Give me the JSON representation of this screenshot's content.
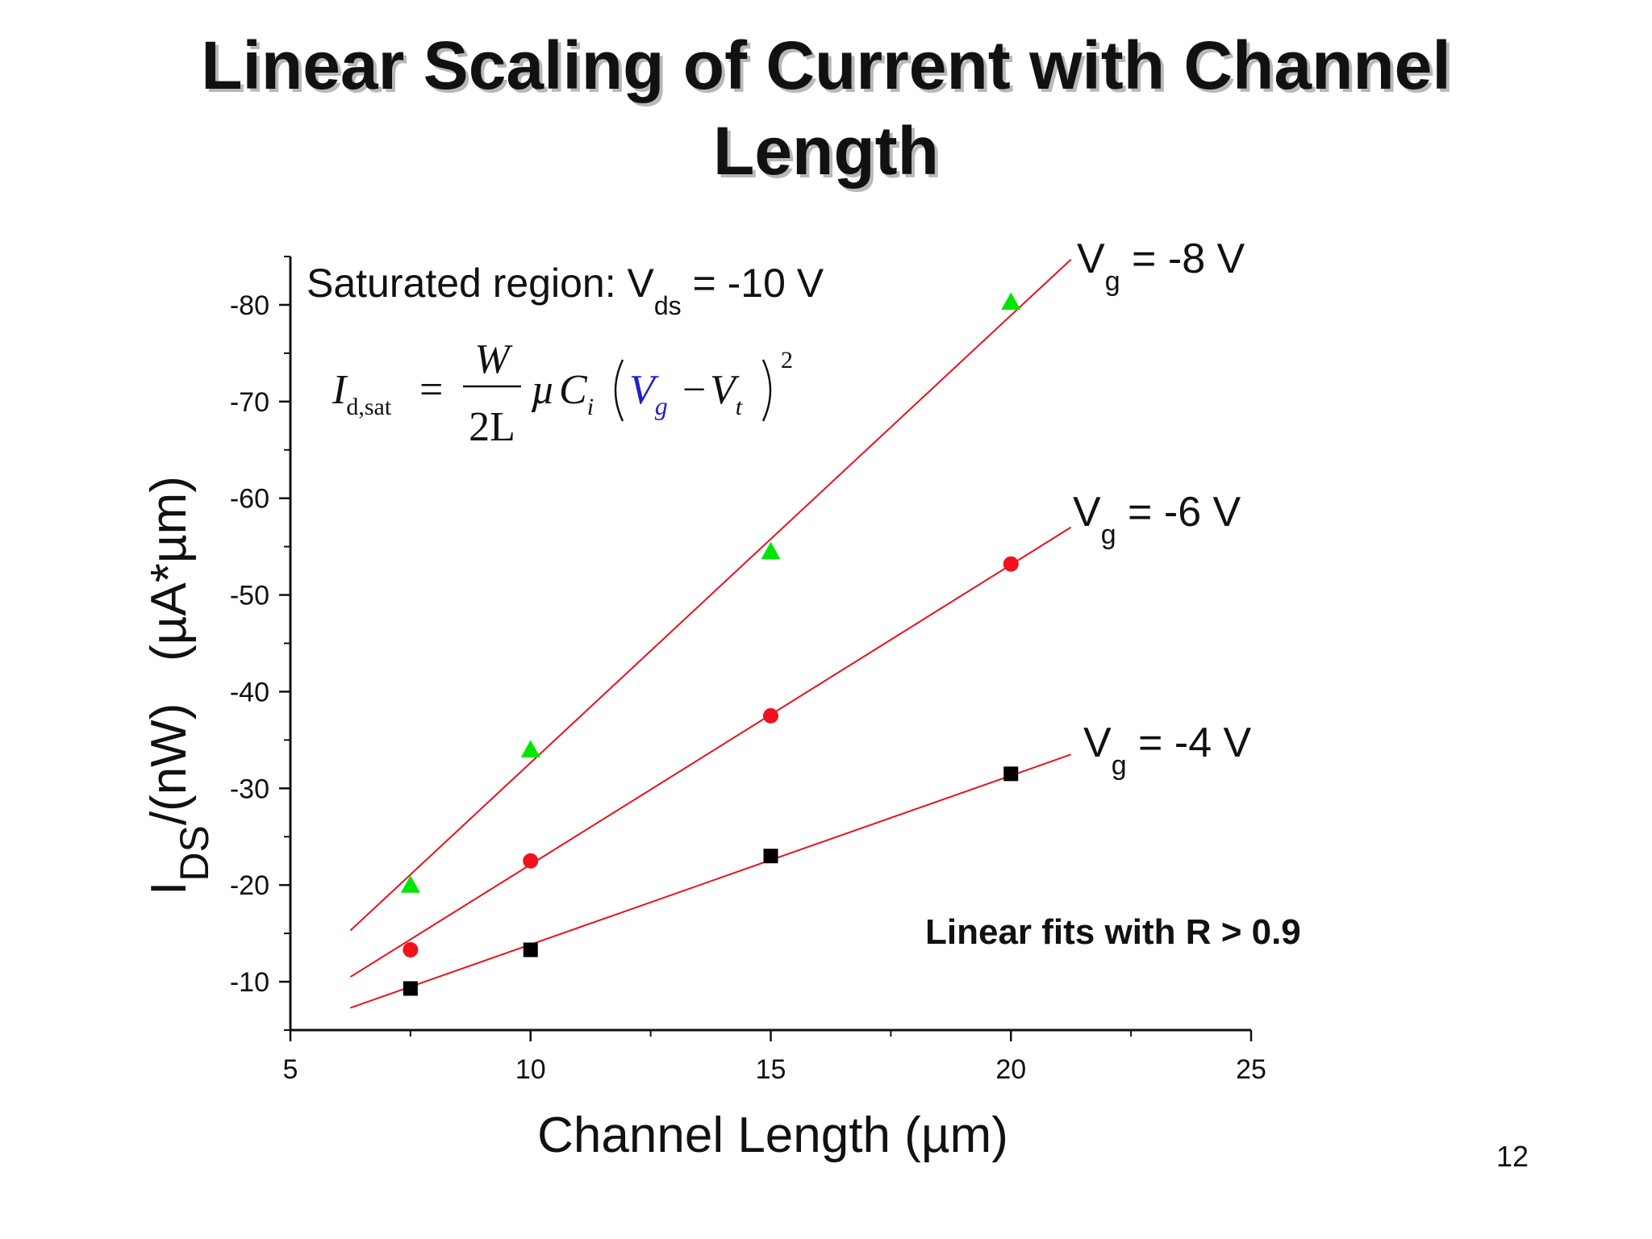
{
  "slide": {
    "title_line1": "Linear Scaling of Current with Channel",
    "title_line2": "Length",
    "page_number": "12"
  },
  "colors": {
    "fit_line": "#e8121c",
    "series_vg4": "#000000",
    "series_vg6": "#f0121c",
    "series_vg8": "#00e600",
    "formula_vg": "#1f1fd0"
  },
  "chart_data": {
    "type": "scatter",
    "xlabel": "Channel Length (µm)",
    "ylabel": {
      "main": "I",
      "sub": "DS",
      "rest": "/(nW)   (µA*µm)"
    },
    "xlim": [
      5,
      25
    ],
    "ylim": [
      -5,
      -85
    ],
    "x_ticks": [
      "5",
      "10",
      "15",
      "20",
      "25"
    ],
    "y_ticks": [
      "-10",
      "-20",
      "-30",
      "-40",
      "-50",
      "-60",
      "-70",
      "-80"
    ],
    "grid": false,
    "series": [
      {
        "label_main": "V",
        "label_sub": "g",
        "label_rest": " = -8 V",
        "marker": "triangle",
        "color": "#00e600",
        "points": [
          [
            7.5,
            -20
          ],
          [
            10,
            -34
          ],
          [
            15,
            -54.5
          ],
          [
            20,
            -80.3
          ]
        ],
        "fit": [
          [
            6.25,
            -15.3
          ],
          [
            21.25,
            -84.7
          ]
        ]
      },
      {
        "label_main": "V",
        "label_sub": "g",
        "label_rest": " = -6 V",
        "marker": "circle",
        "color": "#f0121c",
        "points": [
          [
            7.5,
            -13.3
          ],
          [
            10,
            -22.5
          ],
          [
            15,
            -37.5
          ],
          [
            20,
            -53.2
          ]
        ],
        "fit": [
          [
            6.25,
            -10.5
          ],
          [
            21.25,
            -57
          ]
        ]
      },
      {
        "label_main": "V",
        "label_sub": "g",
        "label_rest": " = -4 V",
        "marker": "square",
        "color": "#000000",
        "points": [
          [
            7.5,
            -9.3
          ],
          [
            10,
            -13.3
          ],
          [
            15,
            -23
          ],
          [
            20,
            -31.5
          ]
        ],
        "fit": [
          [
            6.25,
            -7.3
          ],
          [
            21.25,
            -33.5
          ]
        ]
      }
    ],
    "annotations": {
      "saturated": {
        "main": "Saturated region: V",
        "sub": "ds",
        "rest": " = -10 V"
      },
      "fits_note": "Linear fits with R > 0.9",
      "formula": {
        "lhs_main": "I",
        "lhs_sub": "d,sat",
        "equals": "=",
        "num": "W",
        "den": "2L",
        "mu": "µ",
        "c": "C",
        "c_sub": "i",
        "vg": "V",
        "vg_sub": "g",
        "minus": "−",
        "vt": "V",
        "vt_sub": "t",
        "power": "2"
      }
    }
  }
}
